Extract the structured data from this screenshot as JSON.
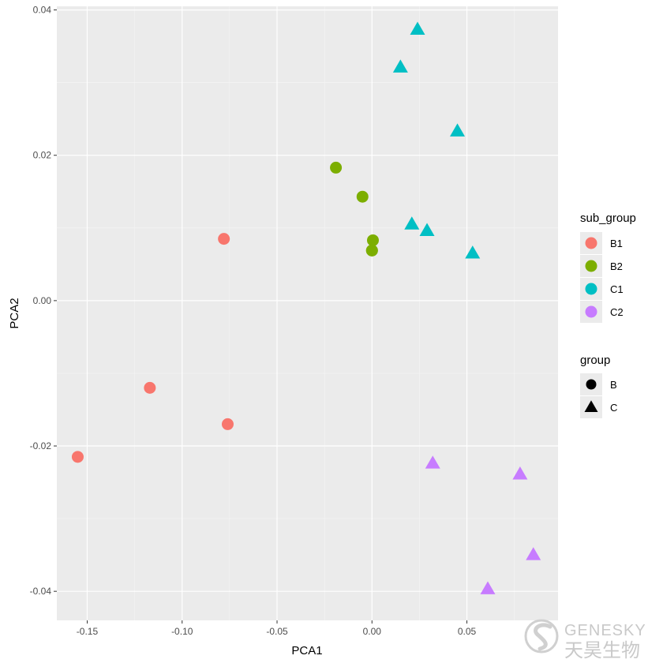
{
  "chart_data": {
    "type": "scatter",
    "xlabel": "PCA1",
    "ylabel": "PCA2",
    "xlim": [
      -0.166,
      0.098
    ],
    "ylim": [
      -0.044,
      0.0405
    ],
    "x_ticks": [
      -0.15,
      -0.1,
      -0.05,
      0.0,
      0.05
    ],
    "x_tick_labels": [
      "-0.15",
      "-0.10",
      "-0.05",
      "0.00",
      "0.05"
    ],
    "y_ticks": [
      -0.04,
      -0.02,
      0.0,
      0.02,
      0.04
    ],
    "y_tick_labels": [
      "-0.04",
      "-0.02",
      "0.00",
      "0.02",
      "0.04"
    ],
    "grid": true,
    "legend_placement": "right",
    "colors": {
      "B1": "#F8766D",
      "B2": "#7CAE00",
      "C1": "#00BFC4",
      "C2": "#C77CFF"
    },
    "shapes": {
      "B": "circle",
      "C": "triangle"
    },
    "legends": [
      {
        "title": "sub_group",
        "entries": [
          "B1",
          "B2",
          "C1",
          "C2"
        ]
      },
      {
        "title": "group",
        "entries": [
          "B",
          "C"
        ]
      }
    ],
    "series": [
      {
        "name": "B1",
        "group": "B",
        "x": [
          -0.078,
          -0.117,
          -0.076,
          -0.155
        ],
        "y": [
          0.0085,
          -0.012,
          -0.017,
          -0.0215
        ]
      },
      {
        "name": "B2",
        "group": "B",
        "x": [
          -0.019,
          -0.005,
          0.0005,
          0.0,
          0.0
        ],
        "y": [
          0.0183,
          0.0143,
          0.0083,
          0.0069,
          0.0069
        ]
      },
      {
        "name": "C1",
        "group": "C",
        "x": [
          0.024,
          0.015,
          0.045,
          0.021,
          0.029,
          0.053
        ],
        "y": [
          0.0372,
          0.032,
          0.0232,
          0.0104,
          0.0095,
          0.0064
        ]
      },
      {
        "name": "C2",
        "group": "C",
        "x": [
          0.032,
          0.078,
          0.085,
          0.061
        ],
        "y": [
          -0.0225,
          -0.024,
          -0.0351,
          -0.0398
        ]
      }
    ]
  },
  "watermark": {
    "brand": "GENESKY",
    "brand_cn": "天昊生物"
  }
}
